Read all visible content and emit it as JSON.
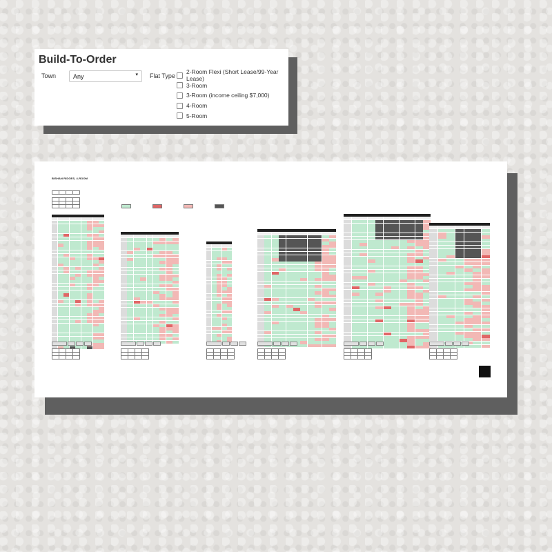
{
  "filter": {
    "title": "Build-To-Order",
    "town_label": "Town",
    "town_value": "Any",
    "flat_type_label": "Flat Type",
    "flat_types": [
      {
        "label": "2-Room Flexi (Short Lease/99-Year Lease)",
        "checked": false
      },
      {
        "label": "3-Room",
        "checked": false
      },
      {
        "label": "3-Room (income ceiling $7,000)",
        "checked": false
      },
      {
        "label": "4-Room",
        "checked": false
      },
      {
        "label": "5-Room",
        "checked": false
      }
    ]
  },
  "sheet": {
    "title": "BISHAN RIDGES, 4-ROOM"
  },
  "colors": {
    "available": "#bfe9cf",
    "selected": "#f2b8b5",
    "selected_strong": "#e06666",
    "not_offered": "#555555",
    "header_bar": "#1f1f1f"
  }
}
